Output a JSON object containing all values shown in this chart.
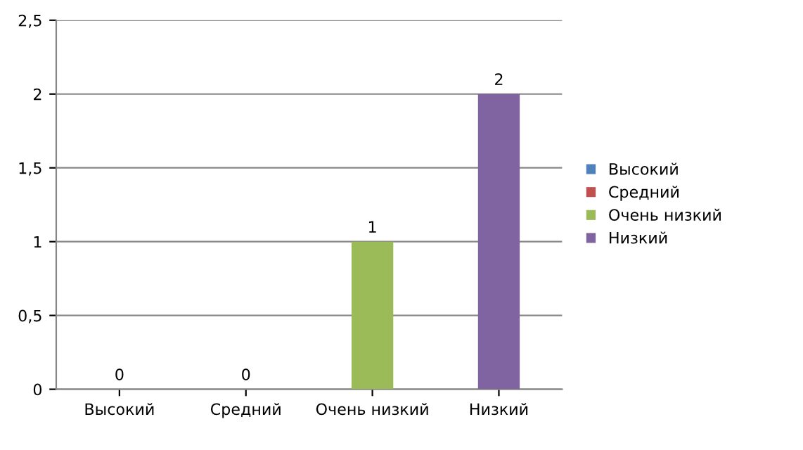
{
  "chart_data": {
    "type": "bar",
    "categories": [
      "Высокий",
      "Средний",
      "Очень низкий",
      "Низкий"
    ],
    "series": [
      {
        "name": "Высокий",
        "color": "#4f81bd",
        "values": [
          0,
          null,
          null,
          null
        ]
      },
      {
        "name": "Средний",
        "color": "#c0504d",
        "values": [
          null,
          0,
          null,
          null
        ]
      },
      {
        "name": "Очень низкий",
        "color": "#9bbb59",
        "values": [
          null,
          null,
          1,
          null
        ]
      },
      {
        "name": "Низкий",
        "color": "#8064a2",
        "values": [
          null,
          null,
          null,
          2
        ]
      }
    ],
    "ylim": [
      0,
      2.5
    ],
    "yticks": [
      {
        "value": 0,
        "label": "0"
      },
      {
        "value": 0.5,
        "label": "0,5"
      },
      {
        "value": 1,
        "label": "1"
      },
      {
        "value": 1.5,
        "label": "1,5"
      },
      {
        "value": 2,
        "label": "2"
      },
      {
        "value": 2.5,
        "label": "2,5"
      }
    ],
    "grid": "y",
    "legend": "right",
    "data_labels": true
  }
}
